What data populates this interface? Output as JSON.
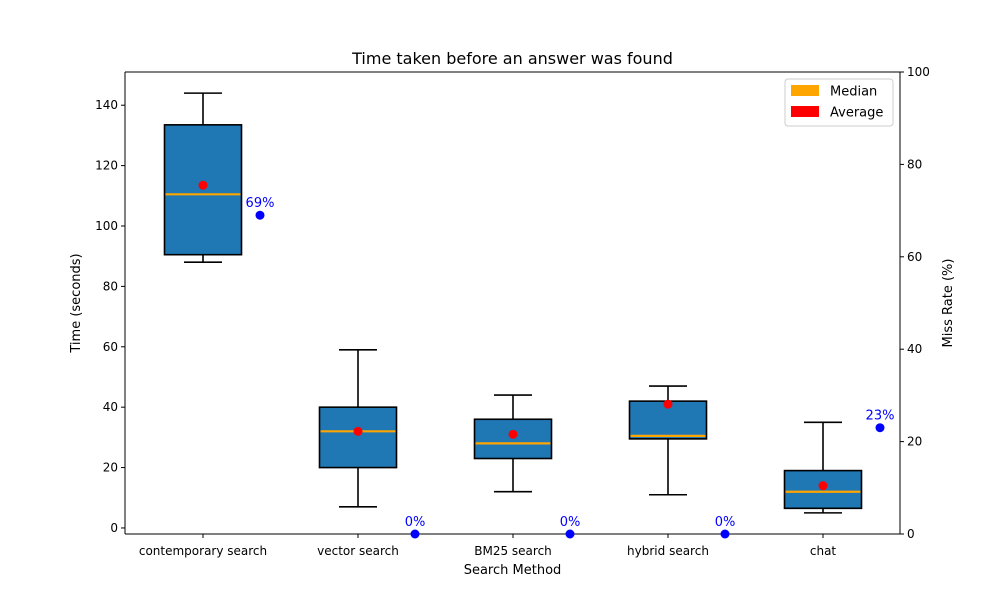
{
  "chart_data": {
    "type": "box",
    "title": "Time taken before an answer was found",
    "xlabel": "Search Method",
    "ylabel": "Time (seconds)",
    "y2label": "Miss Rate (%)",
    "ylim": [
      -2,
      151
    ],
    "y2lim": [
      0,
      100
    ],
    "yticks": [
      0,
      20,
      40,
      60,
      80,
      100,
      120,
      140
    ],
    "y2ticks": [
      0,
      20,
      40,
      60,
      80,
      100
    ],
    "grid": false,
    "legend_position": "top-right",
    "categories": [
      "contemporary search",
      "vector search",
      "BM25 search",
      "hybrid search",
      "chat"
    ],
    "boxes": [
      {
        "whisker_low": 88,
        "q1": 90.5,
        "median": 110.5,
        "q3": 133.5,
        "whisker_high": 144,
        "average": 113.5
      },
      {
        "whisker_low": 7,
        "q1": 20,
        "median": 32,
        "q3": 40,
        "whisker_high": 59,
        "average": 32
      },
      {
        "whisker_low": 12,
        "q1": 23,
        "median": 28,
        "q3": 36,
        "whisker_high": 44,
        "average": 31
      },
      {
        "whisker_low": 11,
        "q1": 29.5,
        "median": 30.5,
        "q3": 42,
        "whisker_high": 47,
        "average": 41
      },
      {
        "whisker_low": 5,
        "q1": 6.5,
        "median": 12,
        "q3": 19,
        "whisker_high": 35,
        "average": 14
      }
    ],
    "miss_rate": [
      69,
      0,
      0,
      0,
      23
    ],
    "miss_rate_labels": [
      "69%",
      "0%",
      "0%",
      "0%",
      "23%"
    ],
    "legend": [
      {
        "label": "Median",
        "color": "#FFA500"
      },
      {
        "label": "Average",
        "color": "#FF0000"
      }
    ],
    "colors": {
      "box_fill": "#1F77B4",
      "median": "#FFA500",
      "average": "#FF0000",
      "miss_rate": "#0000FF"
    }
  }
}
